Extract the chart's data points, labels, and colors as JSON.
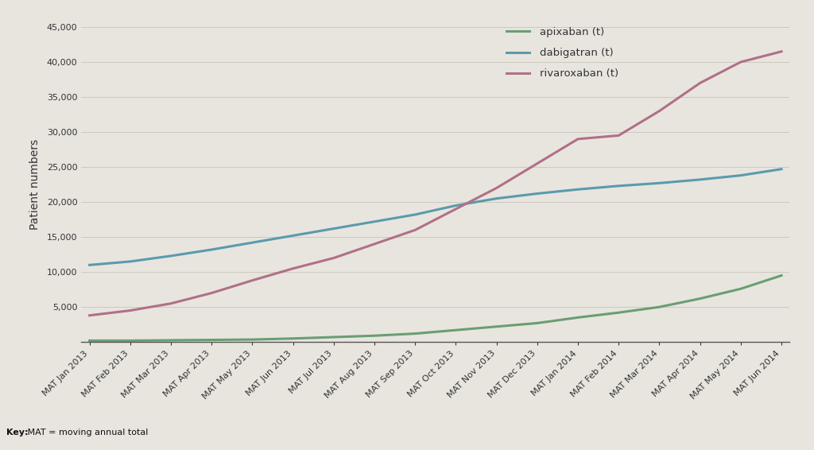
{
  "labels": [
    "MAT Jan 2013",
    "MAT Feb 2013",
    "MAT Mar 2013",
    "MAT Apr 2013",
    "MAT May 2013",
    "MAT Jun 2013",
    "MAT Jul 2013",
    "MAT Aug 2013",
    "MAT Sep 2013",
    "MAT Oct 2013",
    "MAT Nov 2013",
    "MAT Dec 2013",
    "MAT Jan 2014",
    "MAT Feb 2014",
    "MAT Mar 2014",
    "MAT Apr 2014",
    "MAT May 2014",
    "MAT Jun 2014"
  ],
  "apixaban": [
    200,
    200,
    250,
    300,
    350,
    500,
    700,
    900,
    1200,
    1700,
    2200,
    2700,
    3500,
    4200,
    5000,
    6200,
    7600,
    9500
  ],
  "dabigatran": [
    11000,
    11500,
    12300,
    13200,
    14200,
    15200,
    16200,
    17200,
    18200,
    19500,
    20500,
    21200,
    21800,
    22300,
    22700,
    23200,
    23800,
    24700
  ],
  "rivaroxaban": [
    3800,
    4500,
    5500,
    7000,
    8800,
    10500,
    12000,
    14000,
    16000,
    19000,
    22000,
    25500,
    29000,
    29500,
    33000,
    37000,
    40000,
    41500
  ],
  "apixaban_color": "#6a9e72",
  "dabigatran_color": "#5b9aad",
  "rivaroxaban_color": "#b07088",
  "background_color": "#e8e5df",
  "plot_bg_color": "#e8e5df",
  "ylabel": "Patient numbers",
  "ylim": [
    0,
    45000
  ],
  "yticks": [
    0,
    5000,
    10000,
    15000,
    20000,
    25000,
    30000,
    35000,
    40000,
    45000
  ],
  "ytick_labels": [
    "",
    "5,000",
    "10,000",
    "15,000",
    "20,000",
    "25,000",
    "30,000",
    "35,000",
    "40,000",
    "45,000"
  ],
  "legend_labels": [
    "apixaban (t)",
    "dabigatran (t)",
    "rivaroxaban (t)"
  ],
  "key_text_bold": "Key:",
  "key_text_normal": " MAT = moving annual total",
  "line_width": 2.2,
  "footer_bg": "#a8a8a8",
  "ylabel_fontsize": 10,
  "tick_fontsize": 8,
  "legend_fontsize": 9.5
}
